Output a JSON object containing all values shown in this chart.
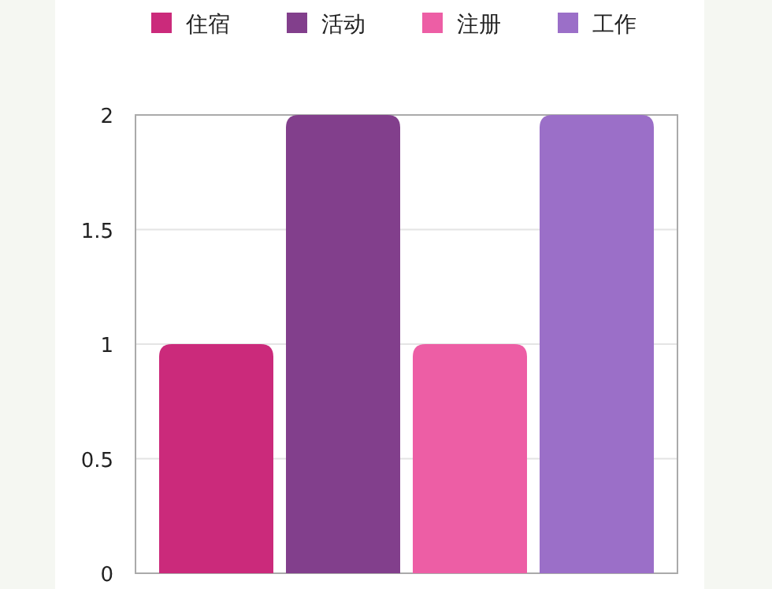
{
  "chart_data": {
    "type": "bar",
    "categories": [
      null
    ],
    "series": [
      {
        "name": "住宿",
        "color": "#cb2a7b",
        "values": [
          1
        ]
      },
      {
        "name": "活动",
        "color": "#823f8c",
        "values": [
          2
        ]
      },
      {
        "name": "注册",
        "color": "#ed5ea5",
        "values": [
          1
        ]
      },
      {
        "name": "工作",
        "color": "#9b6fc8",
        "values": [
          2
        ]
      }
    ],
    "ylim": [
      0,
      2
    ],
    "yticks": [
      0,
      0.5,
      1,
      1.5,
      2
    ],
    "grid": "y",
    "legend": "top"
  }
}
